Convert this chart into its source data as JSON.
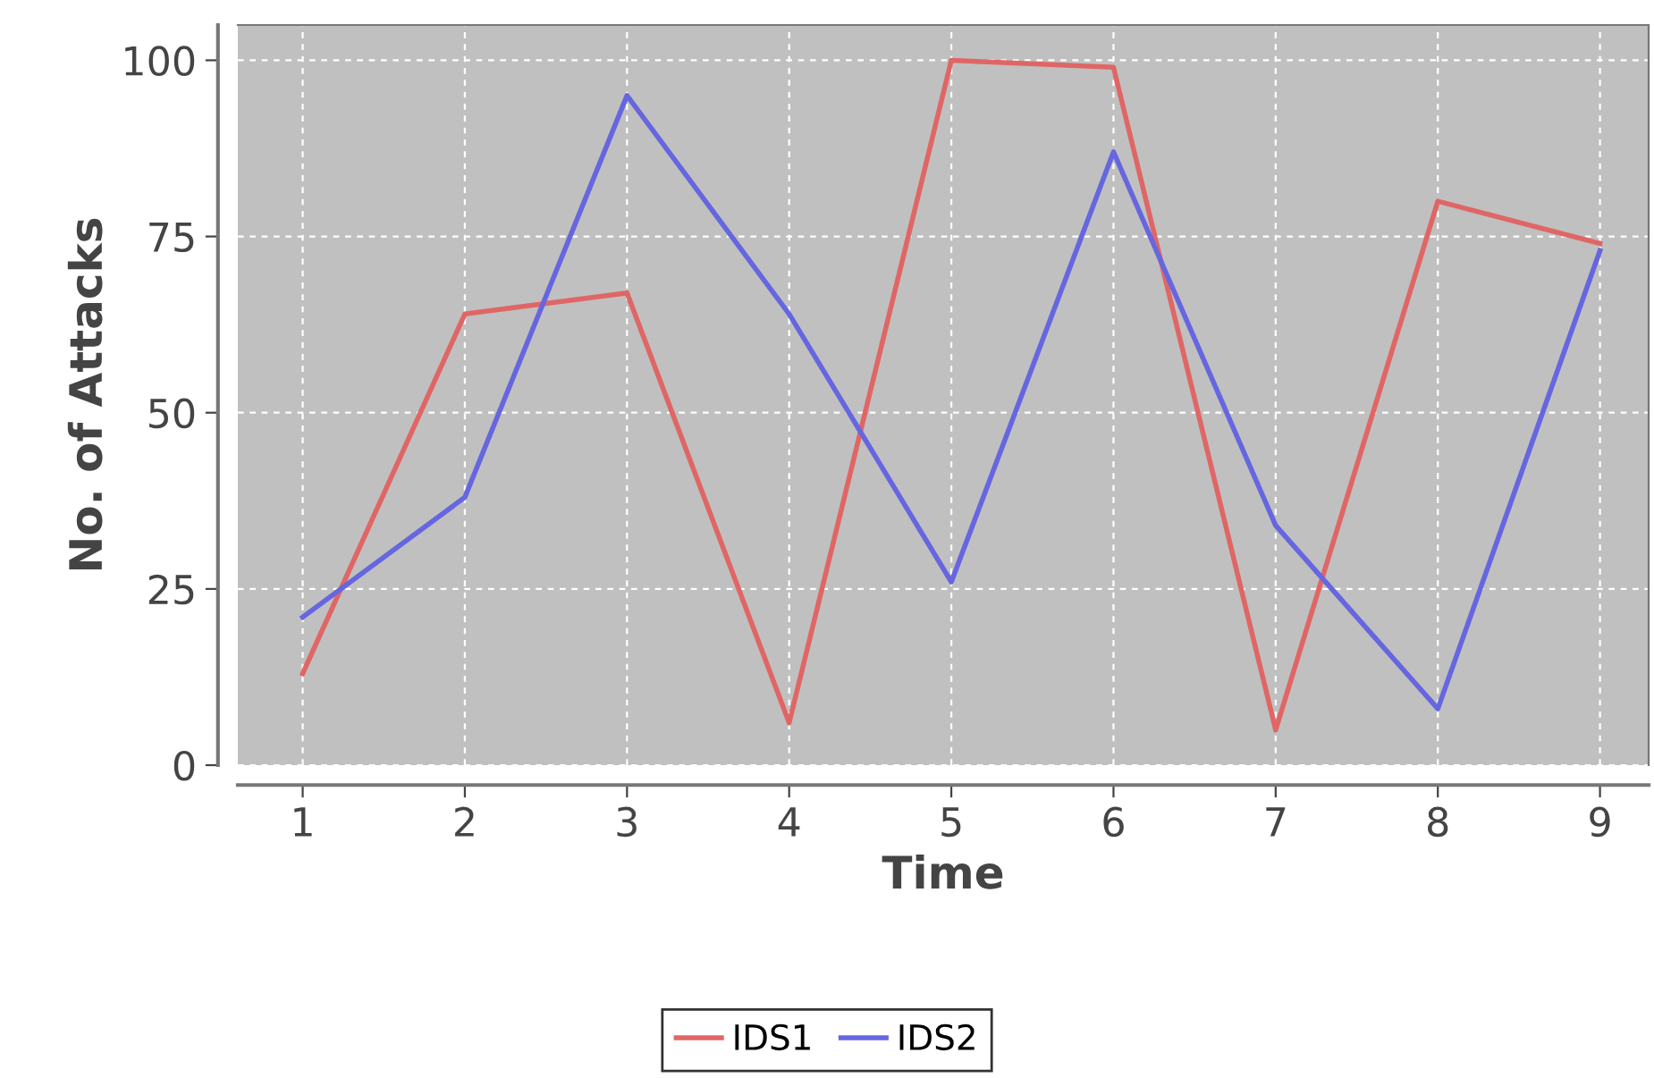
{
  "chart_data": {
    "type": "line",
    "xlabel": "Time",
    "ylabel": "No. of Attacks",
    "x": [
      1,
      2,
      3,
      4,
      5,
      6,
      7,
      8,
      9
    ],
    "series": [
      {
        "name": "IDS1",
        "color": "#e06666",
        "values": [
          13,
          64,
          67,
          6,
          100,
          99,
          5,
          80,
          74
        ]
      },
      {
        "name": "IDS2",
        "color": "#6666e0",
        "values": [
          21,
          38,
          95,
          64,
          26,
          87,
          34,
          8,
          73
        ]
      }
    ],
    "xlim": [
      0.6,
      9.3
    ],
    "xticks": [
      1,
      2,
      3,
      4,
      5,
      6,
      7,
      8,
      9
    ],
    "ylim": [
      0,
      105
    ],
    "yticks": [
      0,
      25,
      50,
      75,
      100
    ],
    "grid": true,
    "legend": "bottom",
    "marker": "none",
    "line_style": "solid"
  }
}
